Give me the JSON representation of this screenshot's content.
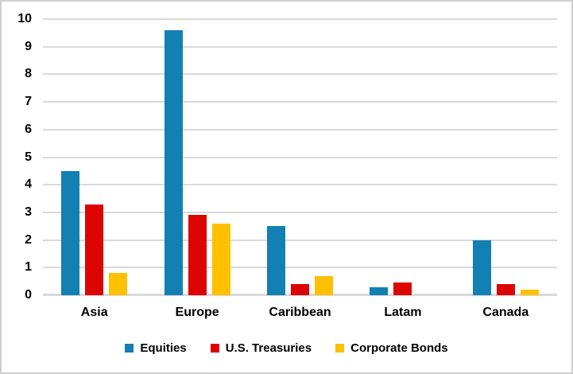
{
  "chart_data": {
    "type": "bar",
    "title": "",
    "categories": [
      "Asia",
      "Europe",
      "Caribbean",
      "Latam",
      "Canada"
    ],
    "series": [
      {
        "name": "Equities",
        "color": "#1280B2",
        "values": [
          4.5,
          9.6,
          2.5,
          0.3,
          2.0
        ]
      },
      {
        "name": "U.S. Treasuries",
        "color": "#DD0404",
        "values": [
          3.3,
          2.9,
          0.4,
          0.45,
          0.4
        ]
      },
      {
        "name": "Corporate Bonds",
        "color": "#FFC000",
        "values": [
          0.8,
          2.6,
          0.7,
          0,
          0.2
        ]
      }
    ],
    "ylim": [
      0,
      10
    ],
    "yticks": [
      0,
      1,
      2,
      3,
      4,
      5,
      6,
      7,
      8,
      9,
      10
    ],
    "xlabel": "",
    "ylabel": "",
    "grid": true,
    "legend_position": "bottom"
  },
  "colors": {
    "grid": "#D9D9D9",
    "axis": "#D9D9D9",
    "frame_border": "#CFCFCF",
    "background": "#FFFFFF",
    "text": "#000000"
  }
}
